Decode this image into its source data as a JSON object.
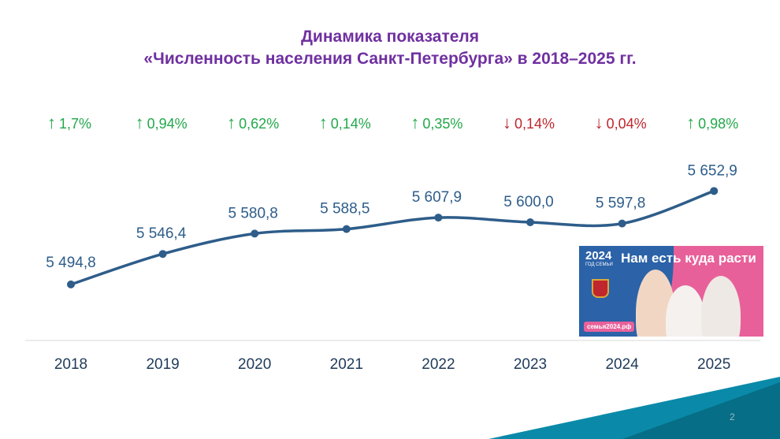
{
  "title_line1": "Динамика показателя",
  "title_line2": "«Численность населения Санкт-Петербурга» в 2018–2025 гг.",
  "colors": {
    "title": "#7030a0",
    "line": "#2e5d8a",
    "label": "#2e5d8a",
    "up": "#21a84a",
    "down": "#c0262d",
    "axis": "#d9d9d9"
  },
  "changes": [
    {
      "dir": "up",
      "arrow": "↑",
      "text": "1,7%"
    },
    {
      "dir": "up",
      "arrow": "↑",
      "text": "0,94%"
    },
    {
      "dir": "up",
      "arrow": "↑",
      "text": "0,62%"
    },
    {
      "dir": "up",
      "arrow": "↑",
      "text": "0,14%"
    },
    {
      "dir": "up",
      "arrow": "↑",
      "text": "0,35%"
    },
    {
      "dir": "down",
      "arrow": "↓",
      "text": "0,14%"
    },
    {
      "dir": "down",
      "arrow": "↓",
      "text": "0,04%"
    },
    {
      "dir": "up",
      "arrow": "↑",
      "text": "0,98%"
    }
  ],
  "chart_data": {
    "type": "line",
    "title": "Динамика показателя «Численность населения Санкт-Петербурга» в 2018–2025 гг.",
    "categories": [
      "2018",
      "2019",
      "2020",
      "2021",
      "2022",
      "2023",
      "2024",
      "2025"
    ],
    "values": [
      5494.8,
      5546.4,
      5580.8,
      5588.5,
      5607.9,
      5600.0,
      5597.8,
      5652.9
    ],
    "data_labels": [
      "5 494,8",
      "5 546,4",
      "5 580,8",
      "5 588,5",
      "5 607,9",
      "5 600,0",
      "5 597,8",
      "5 652,9"
    ],
    "xlabel": "",
    "ylabel": "",
    "ylim": [
      5400,
      5700
    ],
    "grid": false,
    "smooth": true
  },
  "banner": {
    "logo": "2024",
    "logo_sub": "ГОД СЕМЬИ",
    "slogan": "Нам есть куда расти",
    "url": "семья2024.рф"
  },
  "page_number": "2"
}
